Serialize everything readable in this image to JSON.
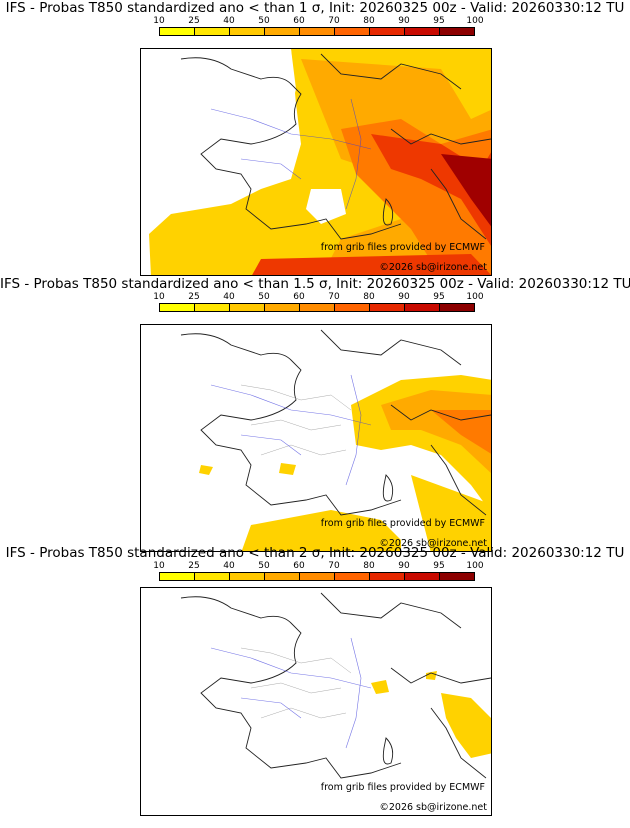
{
  "colorbar": {
    "ticks": [
      "10",
      "25",
      "40",
      "50",
      "60",
      "70",
      "80",
      "90",
      "95",
      "100"
    ],
    "colors": [
      "#ffff00",
      "#ffe600",
      "#ffc800",
      "#ffaa00",
      "#ff8c00",
      "#ff6400",
      "#e62800",
      "#c80a00",
      "#8c0000",
      "#500000"
    ]
  },
  "panels": [
    {
      "title": "IFS - Probas T850  standardized ano < than 1 σ, Init: 20260325 00z - Valid: 20260330:12 TU",
      "credit": "from grib files provided by ECMWF",
      "copyright": "©2026 sb@irizone.net"
    },
    {
      "title": "IFS - Probas T850  standardized ano < than 1.5 σ, Init: 20260325 00z - Valid: 20260330:12 TU",
      "credit": "from grib files provided by ECMWF",
      "copyright": "©2026 sb@irizone.net"
    },
    {
      "title": "IFS - Probas T850  standardized ano < than 2 σ, Init: 20260325 00z - Valid: 20260330:12 TU",
      "credit": "from grib files provided by ECMWF",
      "copyright": "©2026 sb@irizone.net"
    }
  ]
}
